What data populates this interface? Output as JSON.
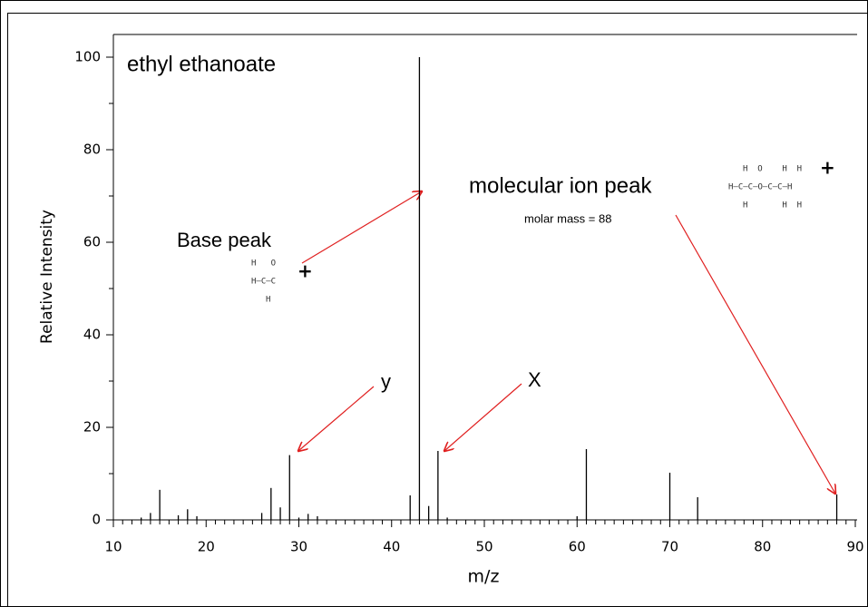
{
  "chart_data": {
    "type": "stem",
    "title": "ethyl ethanoate",
    "x_label": "m/z",
    "y_label": "Relative Intensity",
    "x": [
      13,
      14,
      15,
      17,
      18,
      19,
      26,
      27,
      28,
      29,
      30,
      31,
      32,
      42,
      43,
      44,
      45,
      46,
      60,
      61,
      70,
      73,
      88
    ],
    "values": [
      0.5,
      1.5,
      6.5,
      1,
      2.3,
      0.8,
      1.5,
      6.9,
      2.7,
      14,
      0.5,
      1.3,
      0.8,
      5.3,
      100,
      3,
      14.9,
      0.5,
      0.8,
      15.3,
      10.2,
      4.9,
      5.5
    ],
    "color": "#000000",
    "xlim": [
      10,
      90
    ],
    "ylim": [
      0,
      100
    ],
    "xticks": [
      10,
      20,
      30,
      40,
      50,
      60,
      70,
      80,
      90
    ],
    "yticks": [
      0,
      20,
      40,
      60,
      80,
      100
    ],
    "xminorticks": [
      11,
      12,
      13,
      14,
      15,
      16,
      17,
      18,
      19,
      21,
      22,
      23,
      24,
      25,
      26,
      27,
      28,
      29,
      31,
      32,
      33,
      34,
      35,
      36,
      37,
      38,
      39,
      41,
      42,
      43,
      44,
      45,
      46,
      47,
      48,
      49,
      51,
      52,
      53,
      54,
      55,
      56,
      57,
      58,
      59,
      61,
      62,
      63,
      64,
      65,
      66,
      67,
      68,
      69,
      71,
      72,
      73,
      74,
      75,
      76,
      77,
      78,
      79,
      81,
      82,
      83,
      84,
      85,
      86,
      87,
      88,
      89
    ],
    "yminorticks": [
      10,
      30,
      50,
      70,
      90
    ],
    "annotations": {
      "base_peak": "Base peak",
      "molecular_ion_peak": "molecular ion peak",
      "molar_mass": "molar mass = 88",
      "y": "y",
      "x": "X"
    },
    "base_peak_structure": {
      "top": "H   O",
      "middle": "H–C–C",
      "bottom": "H",
      "charge": "+"
    },
    "molecule_structure": {
      "top": "H  O    H  H",
      "middle": "H–C–C–O–C–C–H",
      "bottom": "H       H  H",
      "charge": "+"
    }
  }
}
